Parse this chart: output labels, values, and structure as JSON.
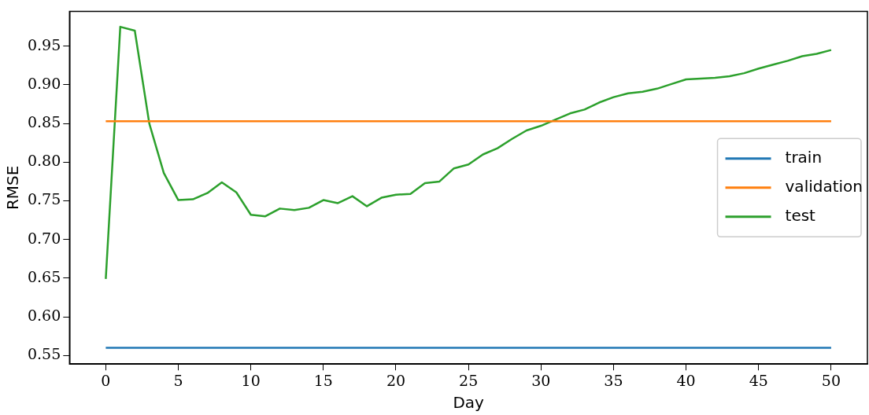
{
  "chart_data": {
    "type": "line",
    "xlabel": "Day",
    "ylabel": "RMSE",
    "x": [
      0,
      1,
      2,
      3,
      4,
      5,
      6,
      7,
      8,
      9,
      10,
      11,
      12,
      13,
      14,
      15,
      16,
      17,
      18,
      19,
      20,
      21,
      22,
      23,
      24,
      25,
      26,
      27,
      28,
      29,
      30,
      31,
      32,
      33,
      34,
      35,
      36,
      37,
      38,
      39,
      40,
      41,
      42,
      43,
      44,
      45,
      46,
      47,
      48,
      49,
      50
    ],
    "series": [
      {
        "name": "train",
        "color": "#1f77b4",
        "values": [
          0.56,
          0.56,
          0.56,
          0.56,
          0.56,
          0.56,
          0.56,
          0.56,
          0.56,
          0.56,
          0.56,
          0.56,
          0.56,
          0.56,
          0.56,
          0.56,
          0.56,
          0.56,
          0.56,
          0.56,
          0.56,
          0.56,
          0.56,
          0.56,
          0.56,
          0.56,
          0.56,
          0.56,
          0.56,
          0.56,
          0.56,
          0.56,
          0.56,
          0.56,
          0.56,
          0.56,
          0.56,
          0.56,
          0.56,
          0.56,
          0.56,
          0.56,
          0.56,
          0.56,
          0.56,
          0.56,
          0.56,
          0.56,
          0.56,
          0.56,
          0.56
        ]
      },
      {
        "name": "validation",
        "color": "#ff7f0e",
        "values": [
          0.853,
          0.853,
          0.853,
          0.853,
          0.853,
          0.853,
          0.853,
          0.853,
          0.853,
          0.853,
          0.853,
          0.853,
          0.853,
          0.853,
          0.853,
          0.853,
          0.853,
          0.853,
          0.853,
          0.853,
          0.853,
          0.853,
          0.853,
          0.853,
          0.853,
          0.853,
          0.853,
          0.853,
          0.853,
          0.853,
          0.853,
          0.853,
          0.853,
          0.853,
          0.853,
          0.853,
          0.853,
          0.853,
          0.853,
          0.853,
          0.853,
          0.853,
          0.853,
          0.853,
          0.853,
          0.853,
          0.853,
          0.853,
          0.853,
          0.853,
          0.853
        ]
      },
      {
        "name": "test",
        "color": "#2ca02c",
        "values": [
          0.649,
          0.975,
          0.97,
          0.85,
          0.786,
          0.751,
          0.752,
          0.76,
          0.774,
          0.761,
          0.732,
          0.73,
          0.74,
          0.738,
          0.741,
          0.751,
          0.747,
          0.756,
          0.743,
          0.754,
          0.758,
          0.759,
          0.773,
          0.775,
          0.792,
          0.797,
          0.81,
          0.818,
          0.83,
          0.841,
          0.847,
          0.855,
          0.863,
          0.868,
          0.877,
          0.884,
          0.889,
          0.891,
          0.895,
          0.901,
          0.907,
          0.908,
          0.909,
          0.911,
          0.915,
          0.921,
          0.926,
          0.931,
          0.937,
          0.94,
          0.945
        ]
      }
    ],
    "xlim": [
      -2.5,
      52.5
    ],
    "xticks": [
      0,
      5,
      10,
      15,
      20,
      25,
      30,
      35,
      40,
      45,
      50
    ],
    "ylim": [
      0.539,
      0.995
    ],
    "yticks": [
      {
        "value": 0.55,
        "label": "0.55"
      },
      {
        "value": 0.6,
        "label": "0.60"
      },
      {
        "value": 0.65,
        "label": "0.65"
      },
      {
        "value": 0.7,
        "label": "0.70"
      },
      {
        "value": 0.75,
        "label": "0.75"
      },
      {
        "value": 0.8,
        "label": "0.80"
      },
      {
        "value": 0.85,
        "label": "0.85"
      },
      {
        "value": 0.9,
        "label": "0.90"
      },
      {
        "value": 0.95,
        "label": "0.95"
      }
    ],
    "grid": false,
    "legend": "center right",
    "marker": "none",
    "line_style": "solid"
  }
}
